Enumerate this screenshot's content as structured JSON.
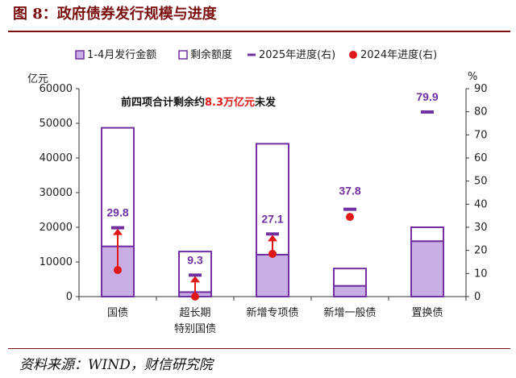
{
  "figure_title": "图 8：政府债券发行规模与进度",
  "source": "资料来源：WIND，财信研究院",
  "chart_data": {
    "type": "bar",
    "categories": [
      "国债",
      "超长期\n特别国债",
      "新增专项债",
      "新增一般债",
      "置换债"
    ],
    "series": [
      {
        "name": "1-4月发行金额",
        "role": "issued",
        "values": [
          14500,
          1300,
          12100,
          3100,
          16000
        ],
        "color": "#c9aee6",
        "stack": "total"
      },
      {
        "name": "剩余额度",
        "role": "remaining",
        "values": [
          34200,
          11700,
          32000,
          5000,
          4000
        ],
        "color": "#ffffff",
        "stack": "total"
      },
      {
        "name": "2025年进度(右)",
        "role": "progress_2025",
        "axis": "right",
        "values": [
          29.8,
          9.3,
          27.1,
          37.8,
          79.9
        ],
        "color": "#7030a0"
      },
      {
        "name": "2024年进度(右)",
        "role": "progress_2024",
        "axis": "right",
        "values": [
          11.5,
          0,
          18.5,
          34.5,
          null
        ],
        "color": "#e01818"
      }
    ],
    "progress_labels": [
      "29.8",
      "9.3",
      "27.1",
      "37.8",
      "79.9"
    ],
    "left_axis": {
      "unit": "亿元",
      "min": 0,
      "max": 60000,
      "ticks": [
        "0",
        "10000",
        "20000",
        "30000",
        "40000",
        "50000",
        "60000"
      ]
    },
    "right_axis": {
      "unit": "%",
      "min": 0,
      "max": 90,
      "ticks": [
        "0",
        "10",
        "20",
        "30",
        "40",
        "50",
        "60",
        "70",
        "80",
        "90"
      ]
    },
    "annotation": {
      "prefix": "前四项合计剩余约",
      "highlight": "8.3万亿元",
      "suffix": "未发"
    },
    "legend_position": "top",
    "bar_outline_color": "#7030a0",
    "arrow_color": "#e01818",
    "grid": false
  }
}
